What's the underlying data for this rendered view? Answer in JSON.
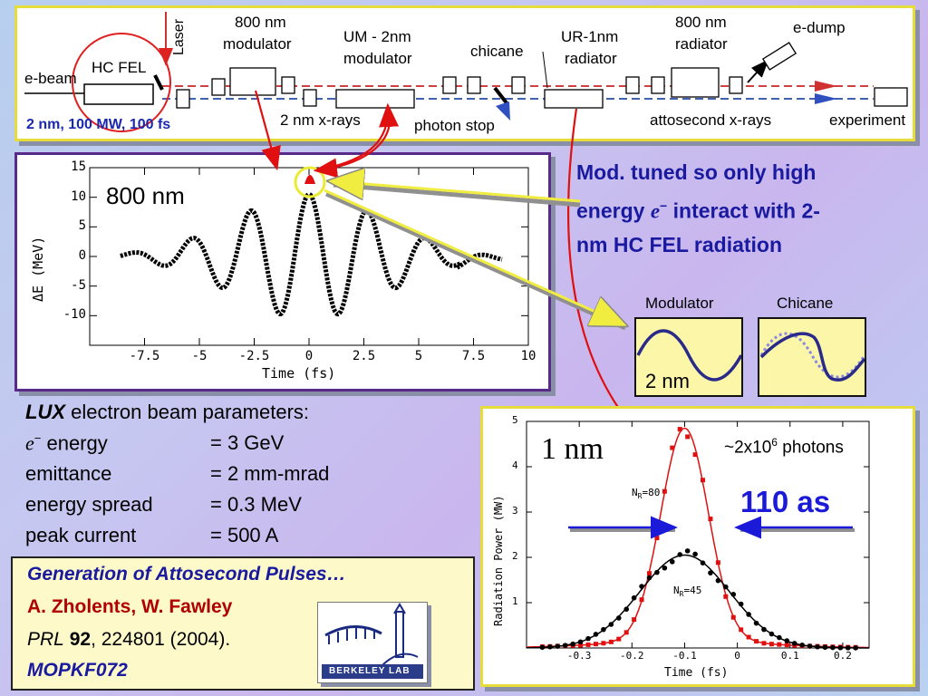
{
  "beamline": {
    "e_beam": "e-beam",
    "hc_fel": "HC FEL",
    "laser": "Laser",
    "mod800_line1": "800 nm",
    "mod800_line2": "modulator",
    "um_line1": "UM - 2nm",
    "um_line2": "modulator",
    "chicane": "chicane",
    "ur_line1": "UR-1nm",
    "ur_line2": "radiator",
    "rad800_line1": "800 nm",
    "rad800_line2": "radiator",
    "e_dump": "e-dump",
    "fel_params": "2 nm, 100 MW, 100 fs",
    "xrays_2nm": "2 nm x-rays",
    "photon_stop": "photon stop",
    "atto_xrays": "attosecond x-rays",
    "experiment": "experiment"
  },
  "mod_plot": {
    "label": "800 nm",
    "ylabel": "ΔE (MeV)",
    "xlabel": "Time (fs)",
    "yticks": [
      "15",
      "10",
      "5",
      "0",
      "-5",
      "-10"
    ],
    "xticks": [
      "-7.5",
      "-5",
      "-2.5",
      "0",
      "2.5",
      "5",
      "7.5",
      "10"
    ]
  },
  "callout": {
    "line1": "Mod. tuned so only high",
    "line2_a": "energy ",
    "line2_e": "e",
    "line2_sup": "−",
    "line2_b": " interact with 2-",
    "line3": "nm HC FEL radiation"
  },
  "insets": {
    "modulator": "Modulator",
    "chicane": "Chicane",
    "wavelength": "2 nm"
  },
  "params": {
    "title_italic": "LUX",
    "title_rest": " electron beam parameters:",
    "rows": [
      {
        "name_italic": "e",
        "name_sup": "−",
        "name": " energy",
        "value": "= 3 GeV"
      },
      {
        "name_italic": "",
        "name_sup": "",
        "name": "emittance",
        "value": "= 2 mm-mrad"
      },
      {
        "name_italic": "",
        "name_sup": "",
        "name": "energy spread",
        "value": "= 0.3 MeV"
      },
      {
        "name_italic": "",
        "name_sup": "",
        "name": "peak current",
        "value": "= 500 A"
      }
    ]
  },
  "reference": {
    "title": "Generation of Attosecond Pulses…",
    "authors": "A. Zholents, W. Fawley",
    "journal": "PRL",
    "volume": "92",
    "rest": ", 224801 (2004).",
    "code": "MOPKF072",
    "logo_text": "BERKELEY LAB"
  },
  "power_plot": {
    "label_1nm": "1 nm",
    "photons_pre": "~2x10",
    "photons_sup": "6",
    "photons_post": " photons",
    "duration": "110 as",
    "nr80": "N",
    "nr80_sub": "R",
    "nr80_val": "=80",
    "nr45_val": "=45",
    "ylabel": "Radiation Power (MW)",
    "xlabel": "Time (fs)",
    "yticks": [
      "5",
      "4",
      "3",
      "2",
      "1"
    ],
    "xticks": [
      "-0.3",
      "-0.2",
      "-0.1",
      "0",
      "0.1",
      "0.2"
    ]
  },
  "colors": {
    "accent_red": "#e01010",
    "accent_blue": "#1a1ac8",
    "title_blue": "#1a1aa0",
    "panel_border": "#e8e030",
    "plot_border": "#5a2a8a"
  }
}
